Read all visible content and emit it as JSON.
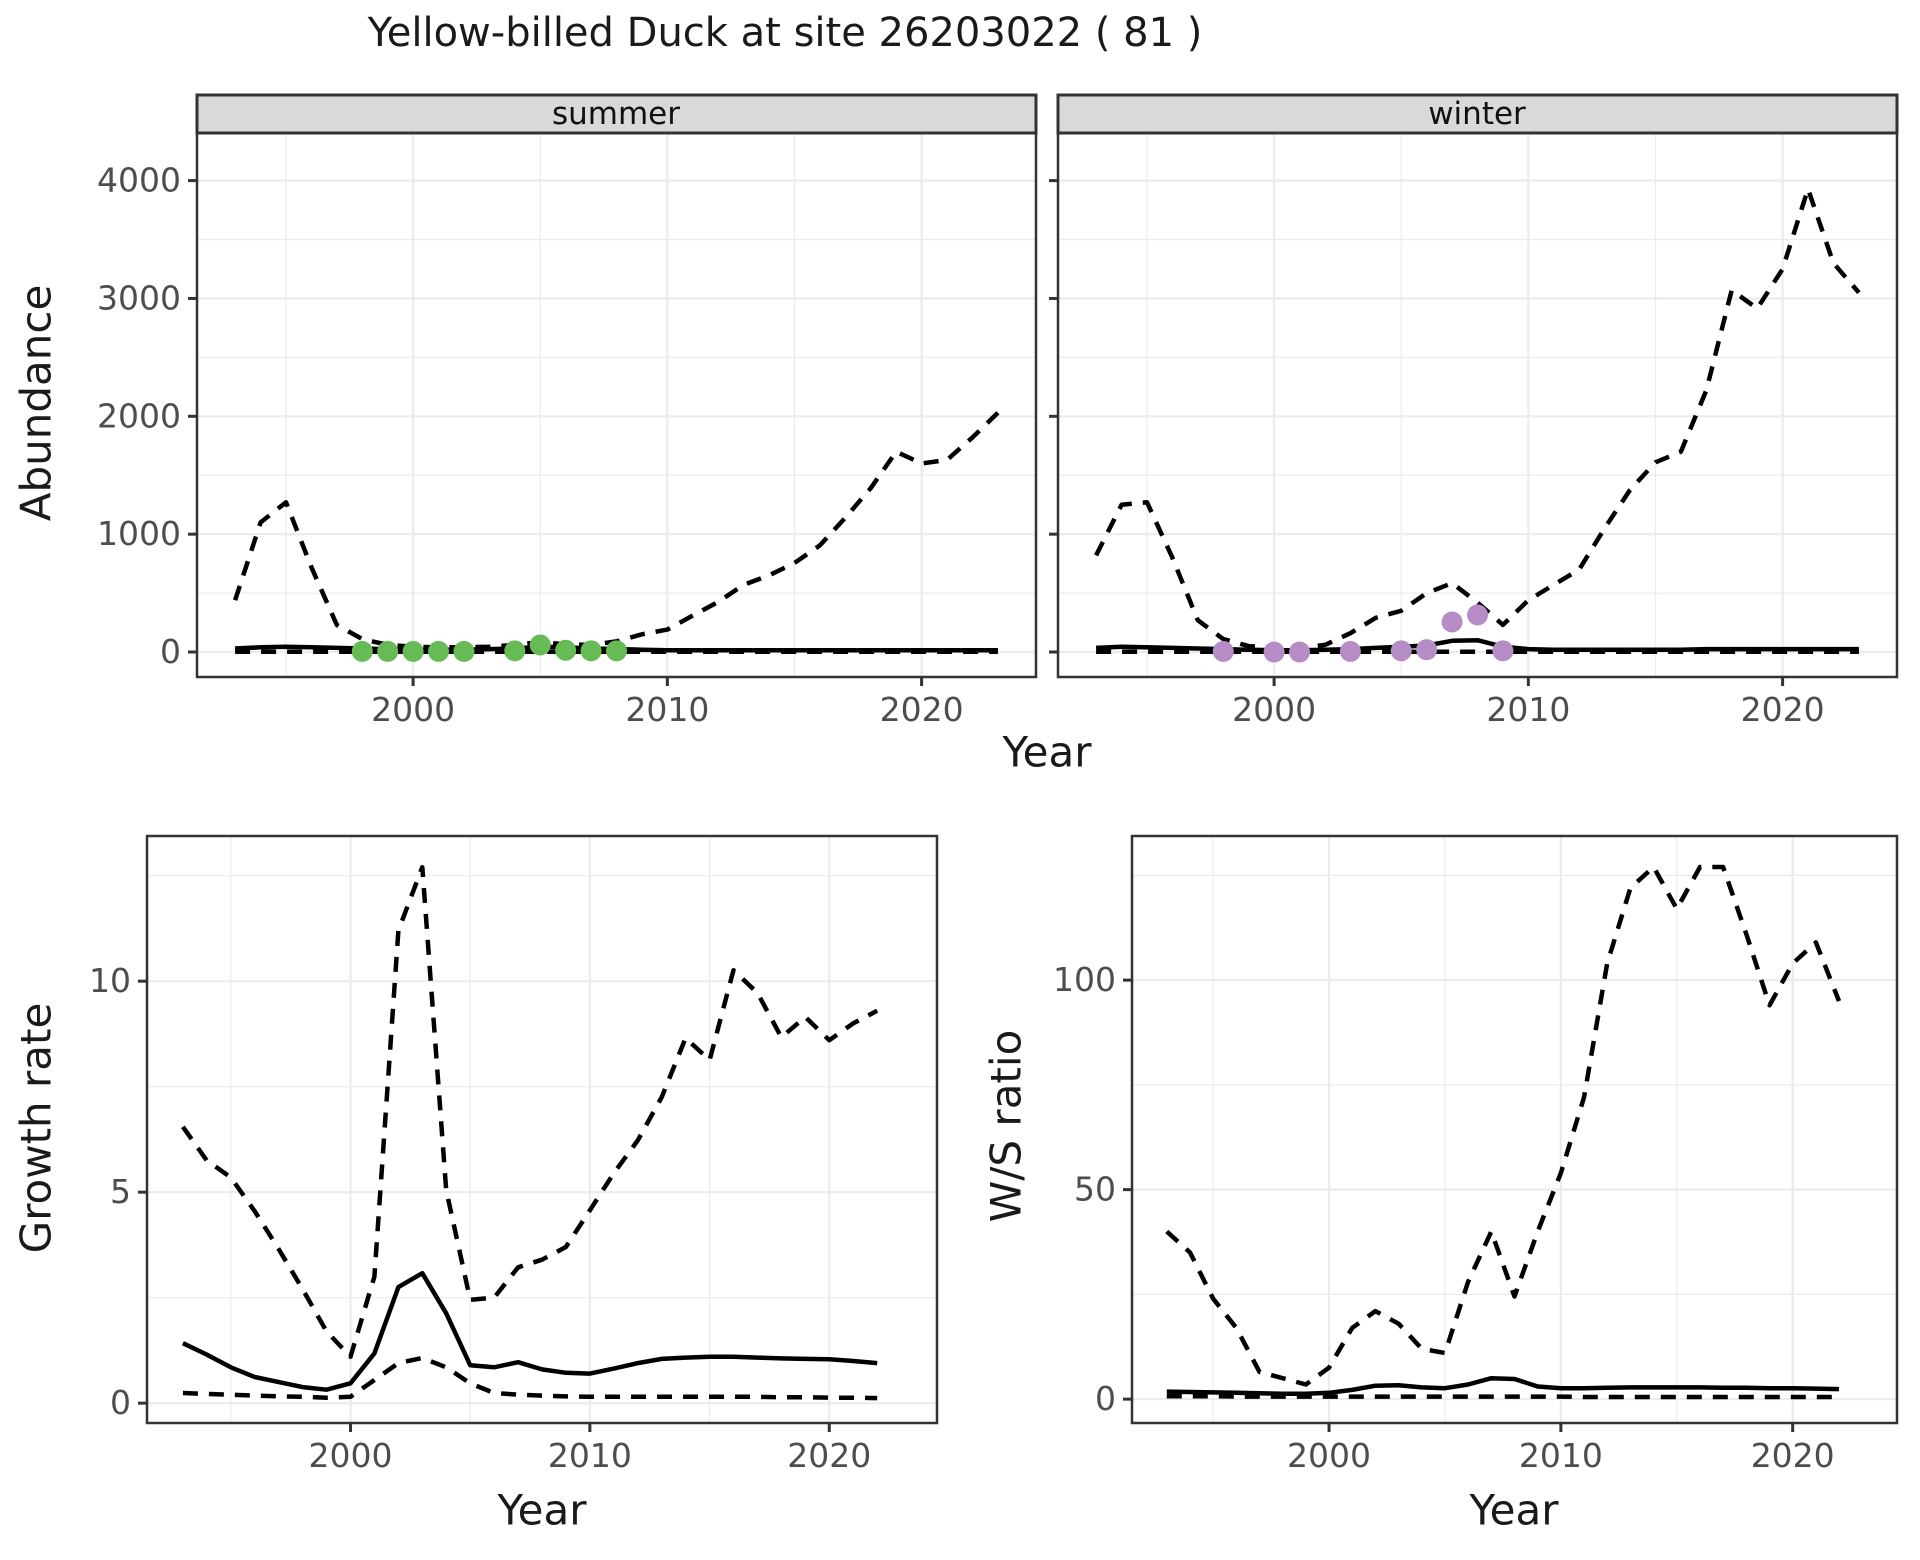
{
  "title": "Yellow-billed Duck at site 26203022 ( 81 )",
  "axis_titles": {
    "abundance": "Abundance",
    "year_top": "Year",
    "growth": "Growth rate",
    "ws": "W/S ratio",
    "year_growth": "Year",
    "year_ws": "Year"
  },
  "colors": {
    "line": "#000000",
    "grid_major": "#ebebeb",
    "grid_minor": "#f2f2f2",
    "panel_border": "#333333",
    "strip_bg": "#d9d9d9",
    "tick_text": "#4d4d4d",
    "summer_points": "#66BB55",
    "winter_points": "#B58CC6"
  },
  "chart_data": [
    {
      "id": "abundance-summer",
      "type": "line",
      "facet_label": "summer",
      "ylabel": "Abundance",
      "xlabel": "Year",
      "xlim": [
        1991.5,
        2024.5
      ],
      "ylim": [
        -212,
        4404
      ],
      "x_major": [
        2000,
        2010,
        2020
      ],
      "x_minor": [
        1995,
        2005,
        2015
      ],
      "y_major": [
        0,
        1000,
        2000,
        3000,
        4000
      ],
      "y_minor": [
        500,
        1500,
        2500,
        3500
      ],
      "x": [
        1993,
        1994,
        1995,
        1996,
        1997,
        1998,
        1999,
        2000,
        2001,
        2002,
        2003,
        2004,
        2005,
        2006,
        2007,
        2008,
        2009,
        2010,
        2011,
        2012,
        2013,
        2014,
        2015,
        2016,
        2017,
        2018,
        2019,
        2020,
        2021,
        2022,
        2023
      ],
      "series": [
        {
          "name": "median",
          "style": "solid",
          "values": [
            30,
            40,
            45,
            40,
            35,
            30,
            25,
            20,
            20,
            20,
            25,
            30,
            45,
            40,
            30,
            25,
            20,
            15,
            15,
            15,
            15,
            15,
            15,
            15,
            15,
            15,
            15,
            15,
            15,
            15,
            15
          ]
        },
        {
          "name": "upper-ci",
          "style": "dashed",
          "values": [
            440,
            1100,
            1270,
            720,
            230,
            110,
            60,
            45,
            40,
            40,
            45,
            60,
            85,
            65,
            60,
            90,
            150,
            190,
            310,
            425,
            570,
            650,
            755,
            905,
            1140,
            1390,
            1700,
            1600,
            1630,
            1820,
            2030
          ]
        },
        {
          "name": "lower-ci",
          "style": "dashed",
          "values": [
            3,
            3,
            3,
            3,
            3,
            3,
            3,
            3,
            3,
            3,
            3,
            3,
            3,
            3,
            3,
            3,
            3,
            3,
            3,
            3,
            3,
            3,
            3,
            3,
            3,
            3,
            3,
            3,
            3,
            3,
            3
          ]
        }
      ],
      "points": {
        "name": "observed-summer-counts",
        "color": "#66BB55",
        "x": [
          1998,
          1999,
          2000,
          2001,
          2002,
          2004,
          2005,
          2006,
          2007,
          2008
        ],
        "values": [
          5,
          5,
          5,
          5,
          5,
          10,
          60,
          15,
          10,
          10
        ]
      }
    },
    {
      "id": "abundance-winter",
      "type": "line",
      "facet_label": "winter",
      "ylabel": "Abundance",
      "xlabel": "Year",
      "xlim": [
        1991.5,
        2024.5
      ],
      "ylim": [
        -212,
        4404
      ],
      "x_major": [
        2000,
        2010,
        2020
      ],
      "x_minor": [
        1995,
        2005,
        2015
      ],
      "y_major": [
        0,
        1000,
        2000,
        3000,
        4000
      ],
      "y_minor": [
        500,
        1500,
        2500,
        3500
      ],
      "x": [
        1993,
        1994,
        1995,
        1996,
        1997,
        1998,
        1999,
        2000,
        2001,
        2002,
        2003,
        2004,
        2005,
        2006,
        2007,
        2008,
        2009,
        2010,
        2011,
        2012,
        2013,
        2014,
        2015,
        2016,
        2017,
        2018,
        2019,
        2020,
        2021,
        2022,
        2023
      ],
      "series": [
        {
          "name": "median",
          "style": "solid",
          "values": [
            35,
            45,
            40,
            35,
            30,
            25,
            20,
            15,
            15,
            20,
            25,
            35,
            45,
            55,
            95,
            100,
            45,
            25,
            20,
            20,
            20,
            20,
            20,
            20,
            25,
            25,
            25,
            25,
            25,
            25,
            25
          ]
        },
        {
          "name": "upper-ci",
          "style": "dashed",
          "values": [
            820,
            1250,
            1270,
            800,
            270,
            110,
            50,
            35,
            35,
            60,
            160,
            290,
            350,
            500,
            585,
            420,
            230,
            440,
            570,
            700,
            1050,
            1375,
            1610,
            1700,
            2220,
            3070,
            2915,
            3250,
            3930,
            3300,
            3050
          ]
        },
        {
          "name": "lower-ci",
          "style": "dashed",
          "values": [
            3,
            3,
            3,
            3,
            3,
            3,
            3,
            3,
            3,
            3,
            3,
            3,
            3,
            3,
            3,
            3,
            3,
            3,
            3,
            3,
            3,
            3,
            3,
            3,
            3,
            3,
            3,
            3,
            3,
            3,
            3
          ]
        }
      ],
      "points": {
        "name": "observed-winter-counts",
        "color": "#B58CC6",
        "x": [
          1998,
          2000,
          2001,
          2003,
          2005,
          2006,
          2007,
          2008,
          2009
        ],
        "values": [
          5,
          0,
          0,
          5,
          10,
          20,
          255,
          315,
          10
        ]
      }
    },
    {
      "id": "growth-rate",
      "type": "line",
      "facet_label": "",
      "ylabel": "Growth rate",
      "xlabel": "Year",
      "xlim": [
        1991.5,
        2024.5
      ],
      "ylim": [
        -0.47,
        13.44
      ],
      "x_major": [
        2000,
        2010,
        2020
      ],
      "x_minor": [
        1995,
        2005,
        2015
      ],
      "y_major": [
        0,
        5,
        10
      ],
      "y_minor": [
        2.5,
        7.5,
        12.5
      ],
      "x": [
        1993,
        1994,
        1995,
        1996,
        1997,
        1998,
        1999,
        2000,
        2001,
        2002,
        2003,
        2004,
        2005,
        2006,
        2007,
        2008,
        2009,
        2010,
        2011,
        2012,
        2013,
        2014,
        2015,
        2016,
        2017,
        2018,
        2019,
        2020,
        2021,
        2022
      ],
      "series": [
        {
          "name": "median",
          "style": "solid",
          "values": [
            1.42,
            1.15,
            0.85,
            0.62,
            0.5,
            0.38,
            0.32,
            0.47,
            1.18,
            2.75,
            3.08,
            2.13,
            0.9,
            0.85,
            0.97,
            0.8,
            0.72,
            0.7,
            0.82,
            0.95,
            1.05,
            1.08,
            1.1,
            1.1,
            1.08,
            1.06,
            1.05,
            1.04,
            1.0,
            0.95
          ]
        },
        {
          "name": "upper-ci",
          "style": "dashed",
          "values": [
            6.55,
            5.75,
            5.35,
            4.55,
            3.65,
            2.7,
            1.7,
            1.1,
            3.0,
            11.2,
            12.7,
            5.05,
            2.45,
            2.5,
            3.22,
            3.4,
            3.7,
            4.57,
            5.45,
            6.23,
            7.25,
            8.65,
            8.13,
            10.26,
            9.72,
            8.67,
            9.15,
            8.6,
            9.0,
            9.3
          ]
        },
        {
          "name": "lower-ci",
          "style": "dashed",
          "values": [
            0.24,
            0.22,
            0.2,
            0.18,
            0.16,
            0.15,
            0.13,
            0.15,
            0.55,
            0.95,
            1.07,
            0.85,
            0.47,
            0.24,
            0.2,
            0.18,
            0.16,
            0.15,
            0.15,
            0.15,
            0.15,
            0.15,
            0.15,
            0.15,
            0.15,
            0.14,
            0.14,
            0.13,
            0.13,
            0.12
          ]
        }
      ],
      "points": null
    },
    {
      "id": "ws-ratio",
      "type": "line",
      "facet_label": "",
      "ylabel": "W/S ratio",
      "xlabel": "Year",
      "xlim": [
        1991.5,
        2024.5
      ],
      "ylim": [
        -5.7,
        134.4
      ],
      "x_major": [
        2000,
        2010,
        2020
      ],
      "x_minor": [
        1995,
        2005,
        2015
      ],
      "y_major": [
        0,
        50,
        100
      ],
      "y_minor": [
        25,
        75,
        125
      ],
      "x": [
        1993,
        1994,
        1995,
        1996,
        1997,
        1998,
        1999,
        2000,
        2001,
        2002,
        2003,
        2004,
        2005,
        2006,
        2007,
        2008,
        2009,
        2010,
        2011,
        2012,
        2013,
        2014,
        2015,
        2016,
        2017,
        2018,
        2019,
        2020,
        2021,
        2022
      ],
      "series": [
        {
          "name": "median",
          "style": "solid",
          "values": [
            1.8,
            1.7,
            1.6,
            1.5,
            1.4,
            1.3,
            1.3,
            1.5,
            2.2,
            3.2,
            3.3,
            2.8,
            2.6,
            3.5,
            5.0,
            4.8,
            3.0,
            2.6,
            2.6,
            2.7,
            2.8,
            2.8,
            2.8,
            2.8,
            2.7,
            2.7,
            2.6,
            2.6,
            2.5,
            2.4
          ]
        },
        {
          "name": "upper-ci",
          "style": "dashed",
          "values": [
            40,
            35,
            24,
            17,
            6.5,
            5,
            3.5,
            7.5,
            17,
            21,
            18,
            12,
            11,
            28,
            40,
            24.5,
            40,
            54,
            72,
            104,
            122,
            127,
            117,
            127,
            127,
            111,
            94,
            104,
            109,
            95
          ]
        },
        {
          "name": "lower-ci",
          "style": "dashed",
          "values": [
            0.7,
            0.7,
            0.7,
            0.6,
            0.6,
            0.6,
            0.6,
            0.6,
            0.6,
            0.6,
            0.6,
            0.6,
            0.6,
            0.6,
            0.6,
            0.6,
            0.6,
            0.6,
            0.5,
            0.5,
            0.5,
            0.5,
            0.5,
            0.5,
            0.5,
            0.5,
            0.5,
            0.5,
            0.5,
            0.5
          ]
        }
      ],
      "points": null
    }
  ]
}
